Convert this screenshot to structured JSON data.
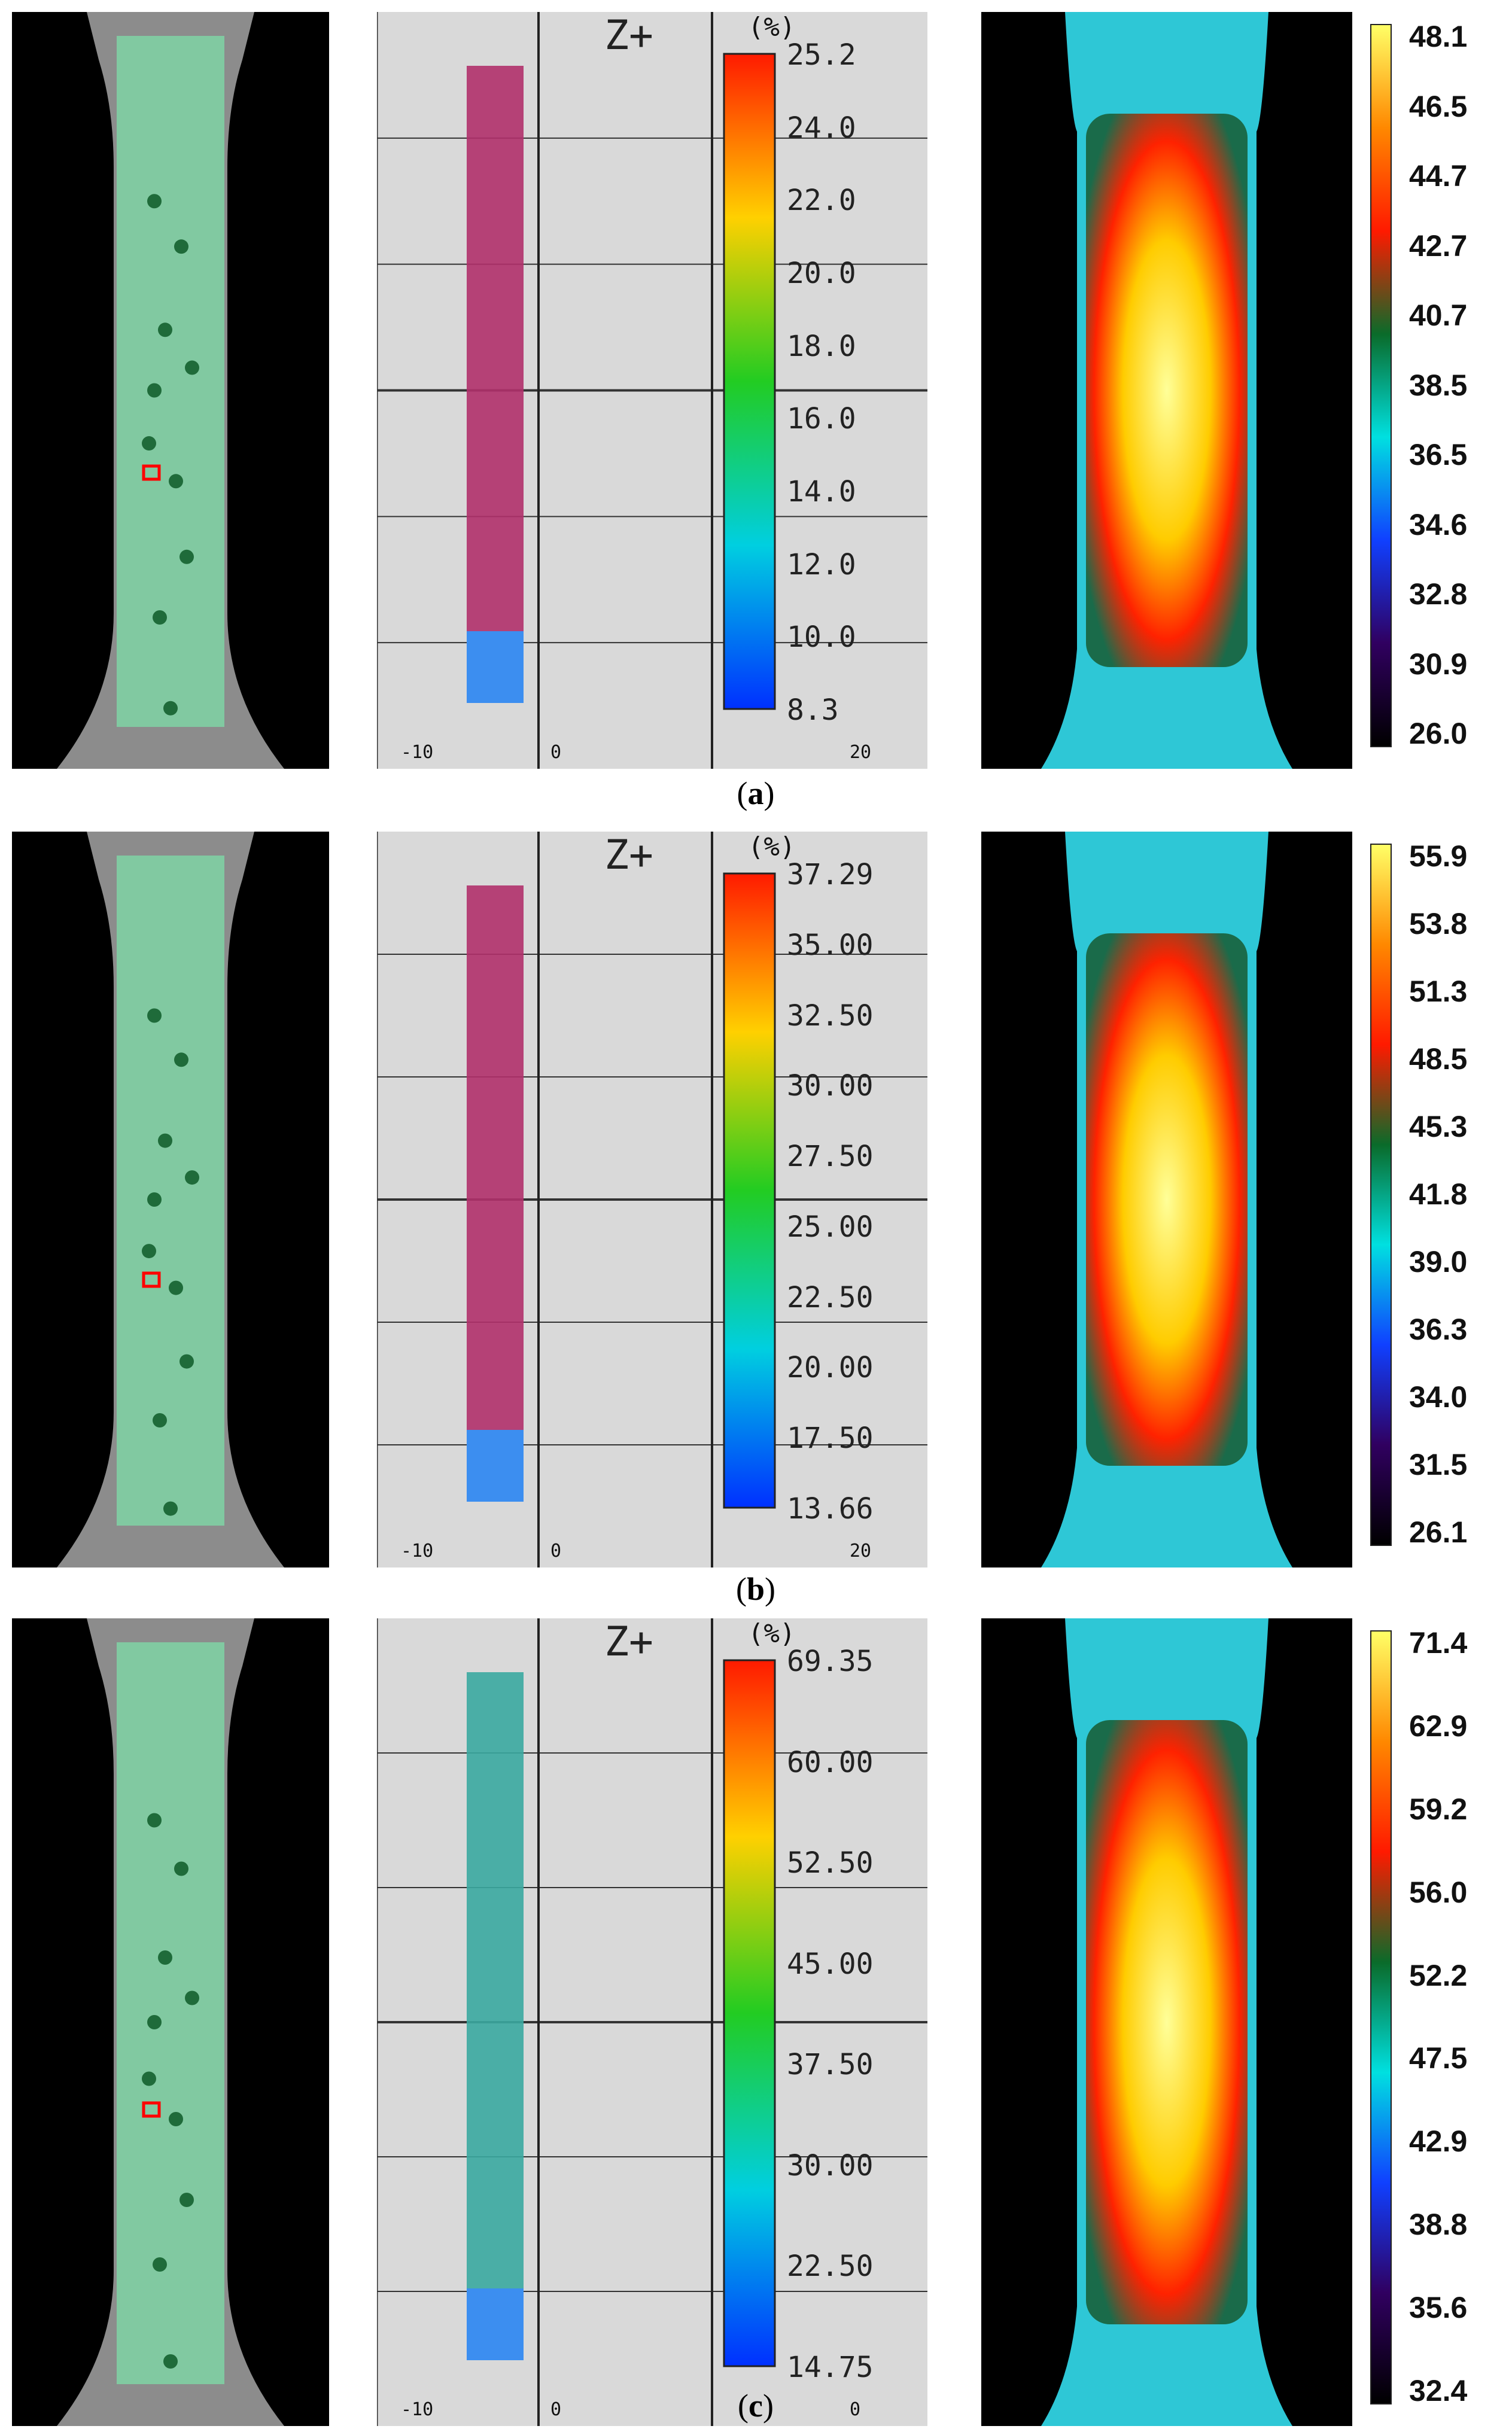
{
  "figure": {
    "panels": [
      {
        "id": "a",
        "caption": "a",
        "dic": {
          "direction_label": "Z+",
          "unit": "(%)",
          "colorbar_ticks": [
            "25.2",
            "24.0",
            "22.0",
            "20.0",
            "18.0",
            "16.0",
            "14.0",
            "12.0",
            "10.0",
            "8.3"
          ],
          "axis_ticks": [
            "-10",
            "0",
            "20"
          ]
        },
        "thermal": {
          "colorbar_ticks": [
            "48.1",
            "46.5",
            "44.7",
            "42.7",
            "40.7",
            "38.5",
            "36.5",
            "34.6",
            "32.8",
            "30.9",
            "26.0"
          ]
        }
      },
      {
        "id": "b",
        "caption": "b",
        "dic": {
          "direction_label": "Z+",
          "unit": "(%)",
          "colorbar_ticks": [
            "37.29",
            "35.00",
            "32.50",
            "30.00",
            "27.50",
            "25.00",
            "22.50",
            "20.00",
            "17.50",
            "13.66"
          ],
          "axis_ticks": [
            "-10",
            "0",
            "20"
          ]
        },
        "thermal": {
          "colorbar_ticks": [
            "55.9",
            "53.8",
            "51.3",
            "48.5",
            "45.3",
            "41.8",
            "39.0",
            "36.3",
            "34.0",
            "31.5",
            "26.1"
          ]
        }
      },
      {
        "id": "c",
        "caption": "c",
        "dic": {
          "direction_label": "Z+",
          "unit": "(%)",
          "colorbar_ticks": [
            "69.35",
            "60.00",
            "52.50",
            "45.00",
            "37.50",
            "30.00",
            "22.50",
            "14.75"
          ],
          "axis_ticks": [
            "-10",
            "0",
            "0"
          ]
        },
        "thermal": {
          "colorbar_ticks": [
            "71.4",
            "62.9",
            "59.2",
            "56.0",
            "52.2",
            "47.5",
            "42.9",
            "38.8",
            "35.6",
            "32.4"
          ]
        }
      }
    ]
  },
  "colors": {
    "background": "#ffffff",
    "dic_background": "#d9d9d9",
    "specimen_green": "#7fd4a4",
    "thermal_hot": "#ffff66",
    "thermal_mid": "#ff2a00"
  }
}
